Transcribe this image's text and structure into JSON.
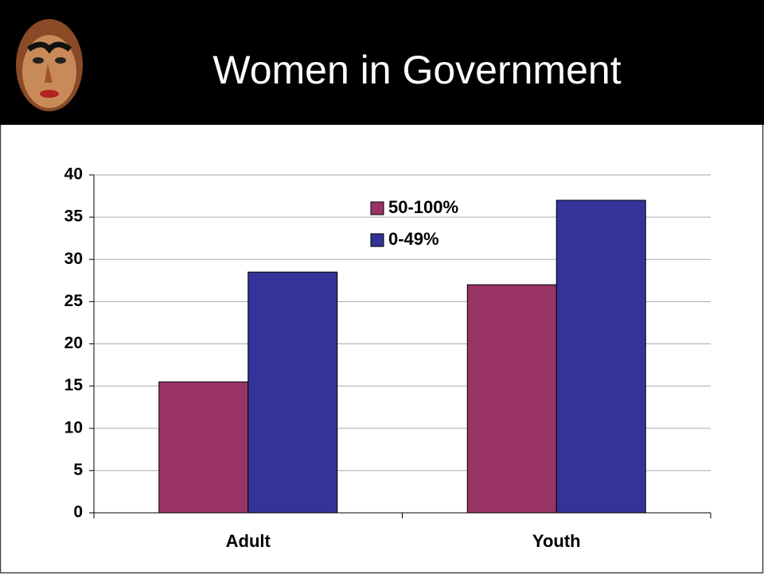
{
  "chart_data": {
    "type": "bar",
    "title": "Women in Government",
    "categories": [
      "Adult",
      "Youth"
    ],
    "series": [
      {
        "name": "50-100%",
        "color": "#993366",
        "values": [
          15.5,
          27
        ]
      },
      {
        "name": "0-49%",
        "color": "#333399",
        "values": [
          28.5,
          37
        ]
      }
    ],
    "ylim": [
      0,
      40
    ],
    "yticks": [
      0,
      5,
      10,
      15,
      20,
      25,
      30,
      35,
      40
    ],
    "grid": true,
    "legend": "top"
  }
}
